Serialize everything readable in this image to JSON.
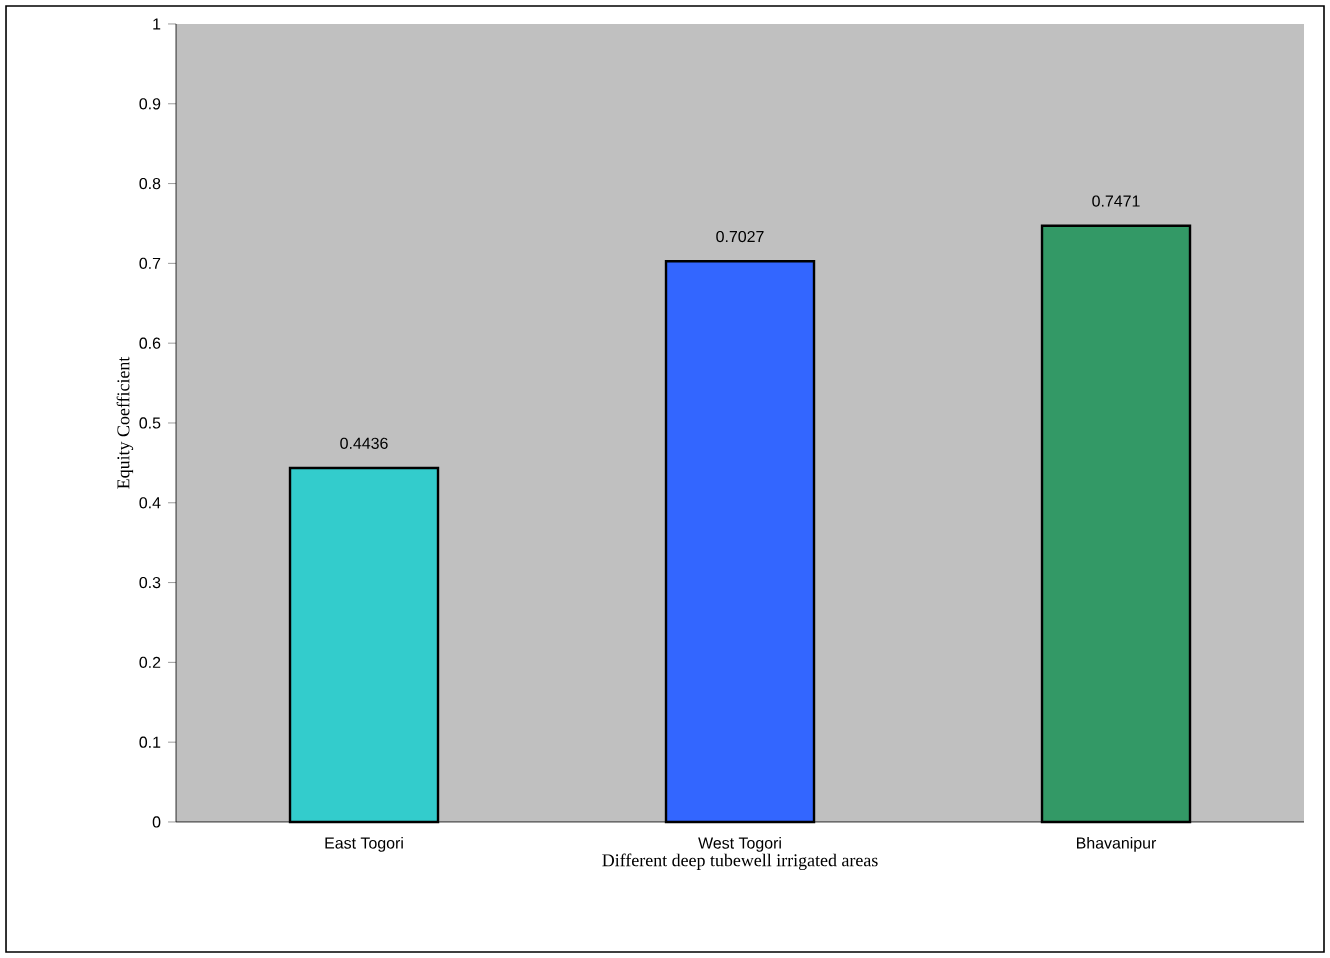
{
  "chart_data": {
    "type": "bar",
    "xlabel": "Different deep tubewell irrigated areas",
    "ylabel": "Equity Coefficient",
    "categories": [
      "East Togori",
      "West Togori",
      "Bhavanipur"
    ],
    "values": [
      0.4436,
      0.7027,
      0.7471
    ],
    "colors": [
      "#33cccc",
      "#3366ff",
      "#339966"
    ],
    "ylim": [
      0,
      1
    ],
    "yticks": [
      0,
      0.1,
      0.2,
      0.3,
      0.4,
      0.5,
      0.6,
      0.7,
      0.8,
      0.9,
      1
    ],
    "data_labels": true,
    "grid": false
  }
}
